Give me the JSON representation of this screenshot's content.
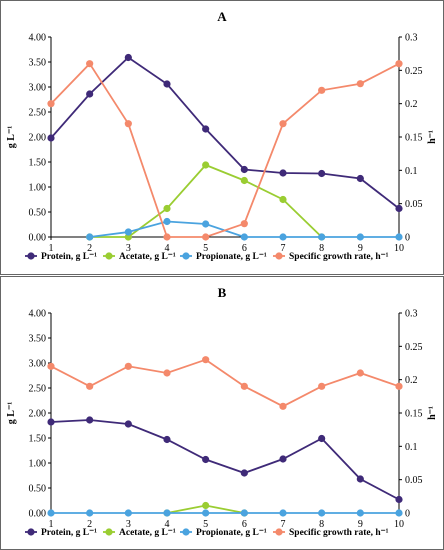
{
  "chart_data": [
    {
      "panel": "A",
      "type": "line",
      "title": "A",
      "ylabel_left": "g L⁻¹",
      "ylabel_right": "h⁻¹",
      "x": [
        1,
        2,
        3,
        4,
        5,
        6,
        7,
        8,
        9,
        10
      ],
      "xlim": [
        1,
        10
      ],
      "ylim_left": [
        0,
        4
      ],
      "ylim_right": [
        0,
        0.3
      ],
      "yticks_left": [
        "0.00",
        "0.50",
        "1.00",
        "1.50",
        "2.00",
        "2.50",
        "3.00",
        "3.50",
        "4.00"
      ],
      "yticks_right": [
        "0",
        "0.05",
        "0.1",
        "0.15",
        "0.2",
        "0.25",
        "0.3"
      ],
      "grid": false,
      "legend_position": "bottom",
      "series": [
        {
          "name": "Protein, g L⁻¹",
          "axis": "left",
          "color": "#3f2a78",
          "x": [
            1,
            2,
            3,
            4,
            5,
            6,
            7,
            8,
            9,
            10
          ],
          "values": [
            1.98,
            2.86,
            3.59,
            3.06,
            2.16,
            1.35,
            1.28,
            1.27,
            1.17,
            0.57
          ]
        },
        {
          "name": "Acetate, g L⁻¹",
          "axis": "left",
          "color": "#9acd32",
          "x": [
            2,
            3,
            4,
            5,
            6,
            7,
            8
          ],
          "values": [
            0.0,
            0.0,
            0.57,
            1.44,
            1.13,
            0.75,
            0.0
          ]
        },
        {
          "name": "Propionate, g L⁻¹",
          "axis": "left",
          "color": "#4aa3df",
          "x": [
            2,
            3,
            4,
            5,
            6,
            7,
            8,
            9,
            10
          ],
          "values": [
            0.0,
            0.1,
            0.31,
            0.26,
            0.0,
            0.0,
            0.0,
            0.0,
            0.0
          ]
        },
        {
          "name": "Specific growth rate, h⁻¹",
          "axis": "right",
          "color": "#f4896b",
          "x": [
            1,
            2,
            3,
            4,
            5,
            6,
            7,
            8,
            9,
            10
          ],
          "values": [
            0.2,
            0.26,
            0.17,
            0.0,
            0.0,
            0.02,
            0.17,
            0.22,
            0.23,
            0.26
          ]
        }
      ]
    },
    {
      "panel": "B",
      "type": "line",
      "title": "B",
      "ylabel_left": "g L⁻¹",
      "ylabel_right": "h⁻¹",
      "x": [
        1,
        2,
        3,
        4,
        5,
        6,
        7,
        8,
        9,
        10
      ],
      "xlim": [
        1,
        10
      ],
      "ylim_left": [
        0,
        4
      ],
      "ylim_right": [
        0,
        0.3
      ],
      "yticks_left": [
        "0.00",
        "0.50",
        "1.00",
        "1.50",
        "2.00",
        "2.50",
        "3.00",
        "3.50",
        "4.00"
      ],
      "yticks_right": [
        "0",
        "0.05",
        "0.1",
        "0.15",
        "0.2",
        "0.25",
        "0.3"
      ],
      "grid": false,
      "legend_position": "bottom",
      "series": [
        {
          "name": "Protein, g L⁻¹",
          "axis": "left",
          "color": "#3f2a78",
          "x": [
            1,
            2,
            3,
            4,
            5,
            6,
            7,
            8,
            9,
            10
          ],
          "values": [
            1.82,
            1.86,
            1.78,
            1.47,
            1.07,
            0.8,
            1.08,
            1.49,
            0.68,
            0.27
          ]
        },
        {
          "name": "Acetate, g L⁻¹",
          "axis": "left",
          "color": "#9acd32",
          "x": [
            4,
            5,
            6
          ],
          "values": [
            0.0,
            0.15,
            0.0
          ]
        },
        {
          "name": "Propionate, g L⁻¹",
          "axis": "left",
          "color": "#4aa3df",
          "x": [
            1,
            2,
            3,
            4,
            5,
            6,
            7,
            8,
            9,
            10
          ],
          "values": [
            0,
            0,
            0,
            0,
            0,
            0,
            0,
            0,
            0,
            0
          ]
        },
        {
          "name": "Specific growth rate, h⁻¹",
          "axis": "right",
          "color": "#f4896b",
          "x": [
            1,
            2,
            3,
            4,
            5,
            6,
            7,
            8,
            9,
            10
          ],
          "values": [
            0.22,
            0.19,
            0.22,
            0.21,
            0.23,
            0.19,
            0.16,
            0.19,
            0.21,
            0.19
          ]
        }
      ]
    }
  ]
}
